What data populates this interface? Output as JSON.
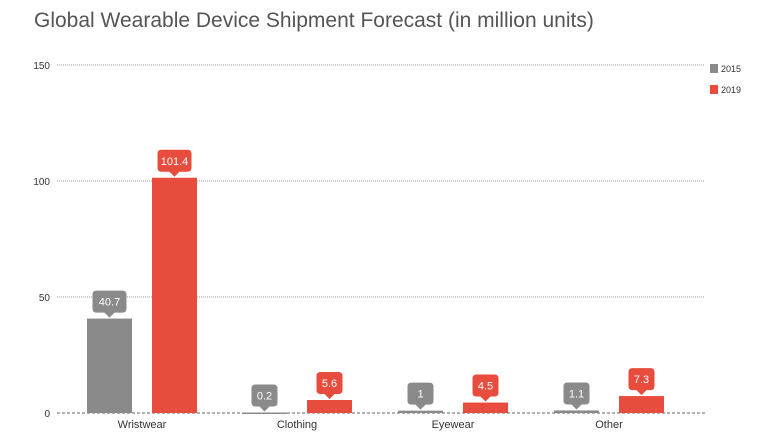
{
  "chart_data": {
    "type": "bar",
    "title": "Global Wearable Device Shipment Forecast (in million units)",
    "xlabel": "",
    "ylabel": "",
    "categories": [
      "Wristwear",
      "Clothing",
      "Eyewear",
      "Other"
    ],
    "series": [
      {
        "name": "2015",
        "values": [
          40.7,
          0.2,
          1,
          1.1
        ],
        "color": "#8a8a8a",
        "labels": [
          "40.7",
          "0.2",
          "1",
          "1.1"
        ]
      },
      {
        "name": "2019",
        "values": [
          101.4,
          5.6,
          4.5,
          7.3
        ],
        "color": "#e84c3d",
        "labels": [
          "101.4",
          "5.6",
          "4.5",
          "7.3"
        ]
      }
    ],
    "ylim": [
      0,
      150
    ],
    "yticks": [
      "0",
      "50",
      "100",
      "150"
    ],
    "grid": true,
    "legend": "top-right"
  }
}
